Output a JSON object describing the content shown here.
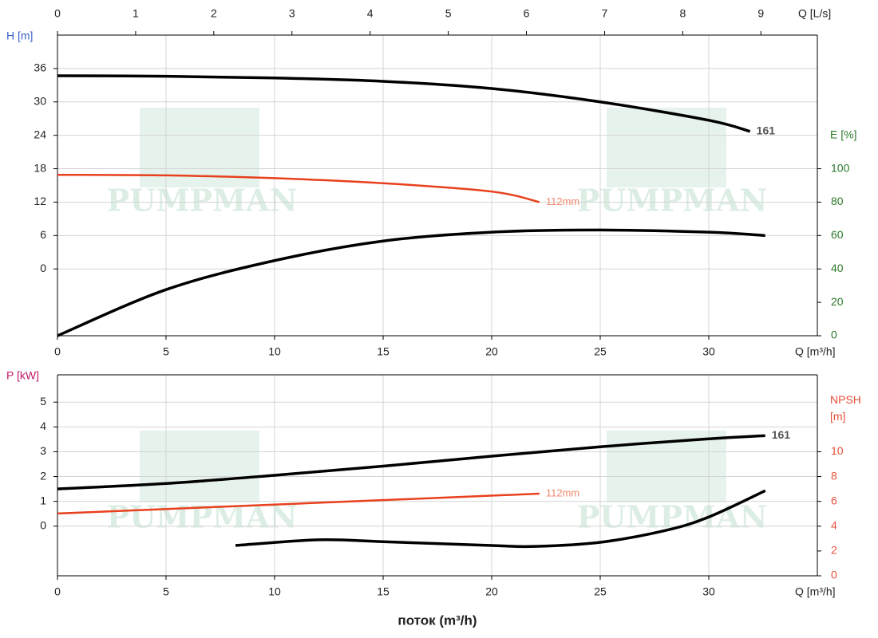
{
  "watermark": "PUMPMAN",
  "chart_data": [
    {
      "type": "line",
      "grid": true,
      "xlabel": "Q [m³/h]",
      "x2label": "Q [L/s]",
      "ylabel": "H [m]",
      "y2label": [
        "E [%]"
      ],
      "ycolor": "#3a5fc8",
      "y2color": "#2a7a2a",
      "xlim": [
        0,
        35
      ],
      "xticks": [
        0,
        5,
        10,
        15,
        20,
        25,
        30
      ],
      "x2lim": [
        0,
        9.7222
      ],
      "x2ticks": [
        0,
        1,
        2,
        3,
        4,
        5,
        6,
        7,
        8,
        9
      ],
      "ylim": [
        -12,
        42
      ],
      "yticks": [
        0,
        6,
        12,
        18,
        24,
        30,
        36
      ],
      "y2lim": [
        0,
        180
      ],
      "y2ticks": [
        0,
        20,
        40,
        60,
        80,
        100
      ],
      "series": [
        {
          "name": "161",
          "color": "#000000",
          "label_color": "#555555",
          "x": [
            0,
            5,
            10,
            15,
            20,
            25,
            30,
            31.9
          ],
          "values": [
            34.7,
            34.6,
            34.3,
            33.7,
            32.4,
            30,
            26.7,
            24.7
          ]
        },
        {
          "name": "112mm",
          "color": "#e8401c",
          "label_color": "#f08a70",
          "x": [
            0,
            5,
            10,
            15,
            20,
            22.2
          ],
          "values": [
            16.9,
            16.8,
            16.3,
            15.4,
            13.9,
            12
          ]
        },
        {
          "color": "#000000",
          "axis": "y2",
          "x": [
            0,
            5,
            10,
            15,
            20,
            25,
            30,
            32.6
          ],
          "values": [
            0,
            27.6,
            45,
            56.7,
            62,
            63.3,
            62,
            60
          ]
        }
      ]
    },
    {
      "type": "line",
      "grid": true,
      "xlabel": "Q [m³/h]",
      "xtitle": "поток (m³/h)",
      "ylabel": "P [kW]",
      "y2label": [
        "NPSH",
        "[m]"
      ],
      "ycolor": "#c0186a",
      "y2color": "#e8503a",
      "xlim": [
        0,
        35
      ],
      "xticks": [
        0,
        5,
        10,
        15,
        20,
        25,
        30
      ],
      "ylim": [
        -2,
        6.1
      ],
      "yticks": [
        0,
        1,
        2,
        3,
        4,
        5
      ],
      "y2lim": [
        0,
        16.2
      ],
      "y2ticks": [
        0,
        2,
        4,
        6,
        8,
        10
      ],
      "series": [
        {
          "name": "161",
          "color": "#000000",
          "label_color": "#555555",
          "x": [
            0,
            5,
            10,
            15,
            20,
            25,
            30,
            32.6
          ],
          "values": [
            1.5,
            1.72,
            2.05,
            2.42,
            2.82,
            3.2,
            3.52,
            3.65
          ]
        },
        {
          "name": "112mm",
          "color": "#e8401c",
          "label_color": "#f08a70",
          "x": [
            0,
            22.2
          ],
          "values": [
            0.51,
            1.31
          ]
        },
        {
          "color": "#000000",
          "axis": "y2",
          "x": [
            8.2,
            12,
            15,
            20,
            22,
            25,
            28,
            30,
            32.6
          ],
          "values": [
            2.44,
            2.9,
            2.75,
            2.44,
            2.37,
            2.7,
            3.65,
            4.74,
            6.86
          ]
        }
      ]
    }
  ]
}
